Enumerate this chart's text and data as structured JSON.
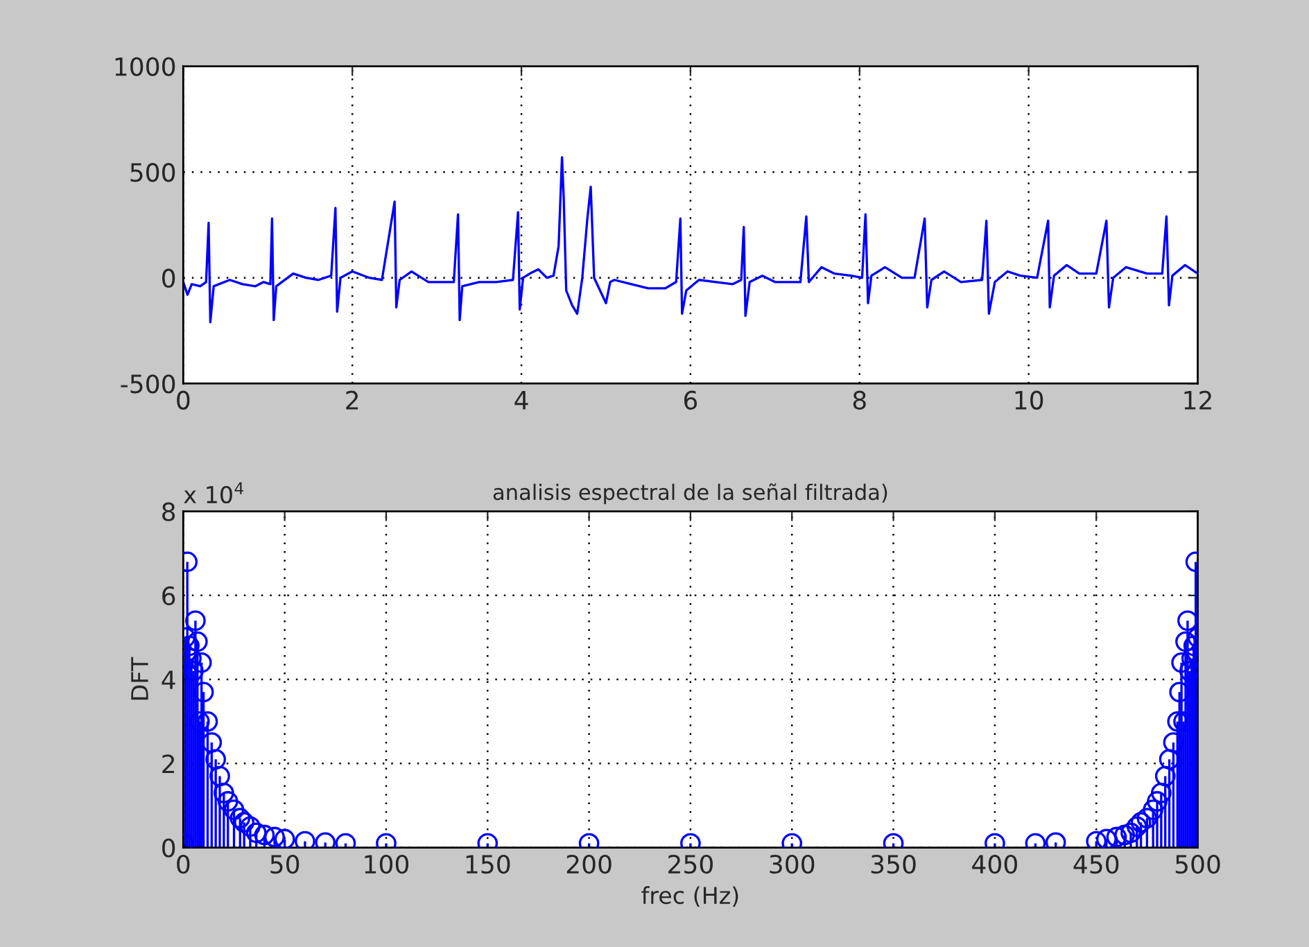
{
  "chart_data": [
    {
      "type": "line",
      "x": [
        0,
        0.05,
        0.1,
        0.2,
        0.27,
        0.3,
        0.32,
        0.36,
        0.55,
        0.7,
        0.85,
        0.95,
        1.03,
        1.05,
        1.07,
        1.1,
        1.3,
        1.45,
        1.6,
        1.75,
        1.8,
        1.82,
        1.86,
        2.0,
        2.2,
        2.35,
        2.5,
        2.52,
        2.56,
        2.7,
        2.9,
        3.1,
        3.2,
        3.25,
        3.27,
        3.3,
        3.5,
        3.7,
        3.9,
        3.96,
        3.98,
        4.02,
        4.1,
        4.2,
        4.3,
        4.38,
        4.44,
        4.48,
        4.5,
        4.53,
        4.6,
        4.66,
        4.72,
        4.78,
        4.82,
        4.86,
        4.93,
        5.0,
        5.05,
        5.1,
        5.3,
        5.5,
        5.7,
        5.83,
        5.88,
        5.9,
        5.95,
        6.1,
        6.3,
        6.5,
        6.6,
        6.63,
        6.65,
        6.7,
        6.85,
        7.0,
        7.3,
        7.37,
        7.4,
        7.55,
        7.7,
        7.9,
        8.03,
        8.07,
        8.1,
        8.14,
        8.3,
        8.5,
        8.65,
        8.77,
        8.8,
        8.85,
        9.0,
        9.2,
        9.45,
        9.5,
        9.53,
        9.6,
        9.75,
        9.9,
        10.1,
        10.23,
        10.25,
        10.3,
        10.45,
        10.6,
        10.8,
        10.92,
        10.95,
        11.0,
        11.15,
        11.4,
        11.58,
        11.63,
        11.66,
        11.7,
        11.85,
        12.0
      ],
      "series": [
        {
          "color": "#0000ff",
          "values": [
            -20,
            -80,
            -30,
            -40,
            -20,
            260,
            -210,
            -40,
            -10,
            -30,
            -40,
            -20,
            -30,
            280,
            -200,
            -40,
            20,
            0,
            -10,
            10,
            330,
            -160,
            0,
            30,
            0,
            -10,
            360,
            -140,
            -10,
            30,
            -20,
            -20,
            -20,
            300,
            -200,
            -40,
            -20,
            -20,
            -10,
            310,
            -150,
            0,
            20,
            40,
            0,
            10,
            150,
            570,
            380,
            -60,
            -130,
            -170,
            0,
            280,
            430,
            0,
            -60,
            -120,
            -20,
            -10,
            -30,
            -50,
            -50,
            -20,
            280,
            -170,
            -60,
            -10,
            -20,
            -30,
            -10,
            240,
            -180,
            -20,
            10,
            -20,
            -20,
            290,
            -20,
            50,
            20,
            10,
            0,
            300,
            -120,
            10,
            50,
            0,
            0,
            280,
            -140,
            -10,
            30,
            -20,
            -10,
            270,
            -170,
            -20,
            30,
            10,
            0,
            270,
            -140,
            10,
            60,
            20,
            20,
            270,
            -140,
            0,
            50,
            20,
            20,
            290,
            -130,
            10,
            60,
            20
          ]
        }
      ],
      "xlim": [
        0,
        12
      ],
      "xticks": [
        0,
        2,
        4,
        6,
        8,
        10,
        12
      ],
      "ylim": [
        -500,
        1000
      ],
      "yticks": [
        -500,
        0,
        500,
        1000
      ],
      "grid": true,
      "line_style": "solid",
      "marker": "none"
    },
    {
      "type": "lollipop",
      "title": "analisis espectral de la señal filtrada)",
      "xlabel": "frec (Hz)",
      "ylabel": "DFT",
      "annotations": [
        "x 10$^{4}$"
      ],
      "x": [
        0,
        1,
        2,
        3,
        4,
        5,
        6,
        7,
        8,
        9,
        10,
        12,
        14,
        16,
        18,
        20,
        22,
        25,
        28,
        30,
        33,
        36,
        40,
        45,
        50,
        60,
        70,
        80,
        100,
        150,
        200,
        250,
        300,
        350,
        400,
        420,
        430,
        450,
        455,
        460,
        464,
        467,
        470,
        472,
        475,
        478,
        480,
        482,
        484,
        486,
        488,
        490,
        491,
        492,
        493,
        494,
        495,
        496,
        497,
        498,
        499,
        500
      ],
      "series": [
        {
          "color": "#0000ff",
          "values": [
            0.1,
            5.0,
            6.8,
            4.8,
            4.5,
            4.2,
            5.4,
            4.9,
            3.0,
            4.4,
            3.7,
            3.0,
            2.5,
            2.1,
            1.7,
            1.3,
            1.1,
            0.9,
            0.7,
            0.6,
            0.5,
            0.35,
            0.3,
            0.25,
            0.2,
            0.15,
            0.12,
            0.1,
            0.1,
            0.1,
            0.1,
            0.1,
            0.1,
            0.1,
            0.1,
            0.1,
            0.12,
            0.15,
            0.2,
            0.25,
            0.3,
            0.35,
            0.5,
            0.6,
            0.7,
            0.9,
            1.1,
            1.3,
            1.7,
            2.1,
            2.5,
            3.0,
            3.7,
            4.4,
            3.0,
            4.9,
            5.4,
            4.2,
            4.5,
            4.8,
            6.8,
            5.0
          ]
        }
      ],
      "xlim": [
        0,
        500
      ],
      "xticks": [
        0,
        50,
        100,
        150,
        200,
        250,
        300,
        350,
        400,
        450,
        500
      ],
      "ylim": [
        0,
        8
      ],
      "yticks": [
        0,
        2,
        4,
        6,
        8
      ],
      "grid": true,
      "marker": "circle"
    }
  ]
}
